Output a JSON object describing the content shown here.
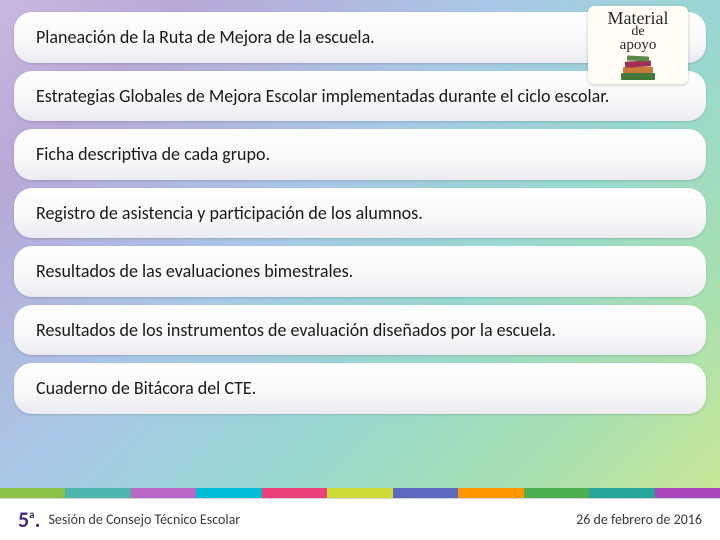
{
  "items": [
    {
      "text": "Planeación de la Ruta de Mejora de la escuela."
    },
    {
      "text": "Estrategias Globales de Mejora Escolar implementadas durante el ciclo escolar."
    },
    {
      "text": "Ficha descriptiva de cada grupo."
    },
    {
      "text": "Registro de asistencia y participación de los alumnos."
    },
    {
      "text": "Resultados de las evaluaciones bimestrales."
    },
    {
      "text": "Resultados de los instrumentos de evaluación diseñados por la escuela."
    },
    {
      "text": "Cuaderno de Bitácora del CTE."
    }
  ],
  "badge": {
    "line1": "Material",
    "line2": "de",
    "line3": "apoyo"
  },
  "footer": {
    "ordinal_num": "5",
    "ordinal_sup": "a",
    "label": "Sesión de Consejo Técnico Escolar",
    "date": "26 de febrero de 2016"
  },
  "stripe_colors": [
    "#8bc34a",
    "#4db6ac",
    "#ba68c8",
    "#00bcd4",
    "#ec407a",
    "#cddc39",
    "#5c6bc0",
    "#ff9800",
    "#4caf50",
    "#26a69a",
    "#ab47bc"
  ],
  "styling": {
    "item_bg_gradient": [
      "#ffffff",
      "#f8f8fa",
      "#ebebf0"
    ],
    "item_border_radius": 18,
    "item_font_size": 18,
    "item_text_color": "#1a1a1a",
    "background_gradient": [
      "#c8b8e0",
      "#b8a8d8",
      "#a8c8e8",
      "#98d8d0",
      "#a8e0b0",
      "#d0e890"
    ],
    "footer_bg": "#ffffff",
    "footer_ordinal_color": "#4a2a7a",
    "footer_text_color": "#3a3a3a",
    "badge_bg": "#fffdf5"
  }
}
